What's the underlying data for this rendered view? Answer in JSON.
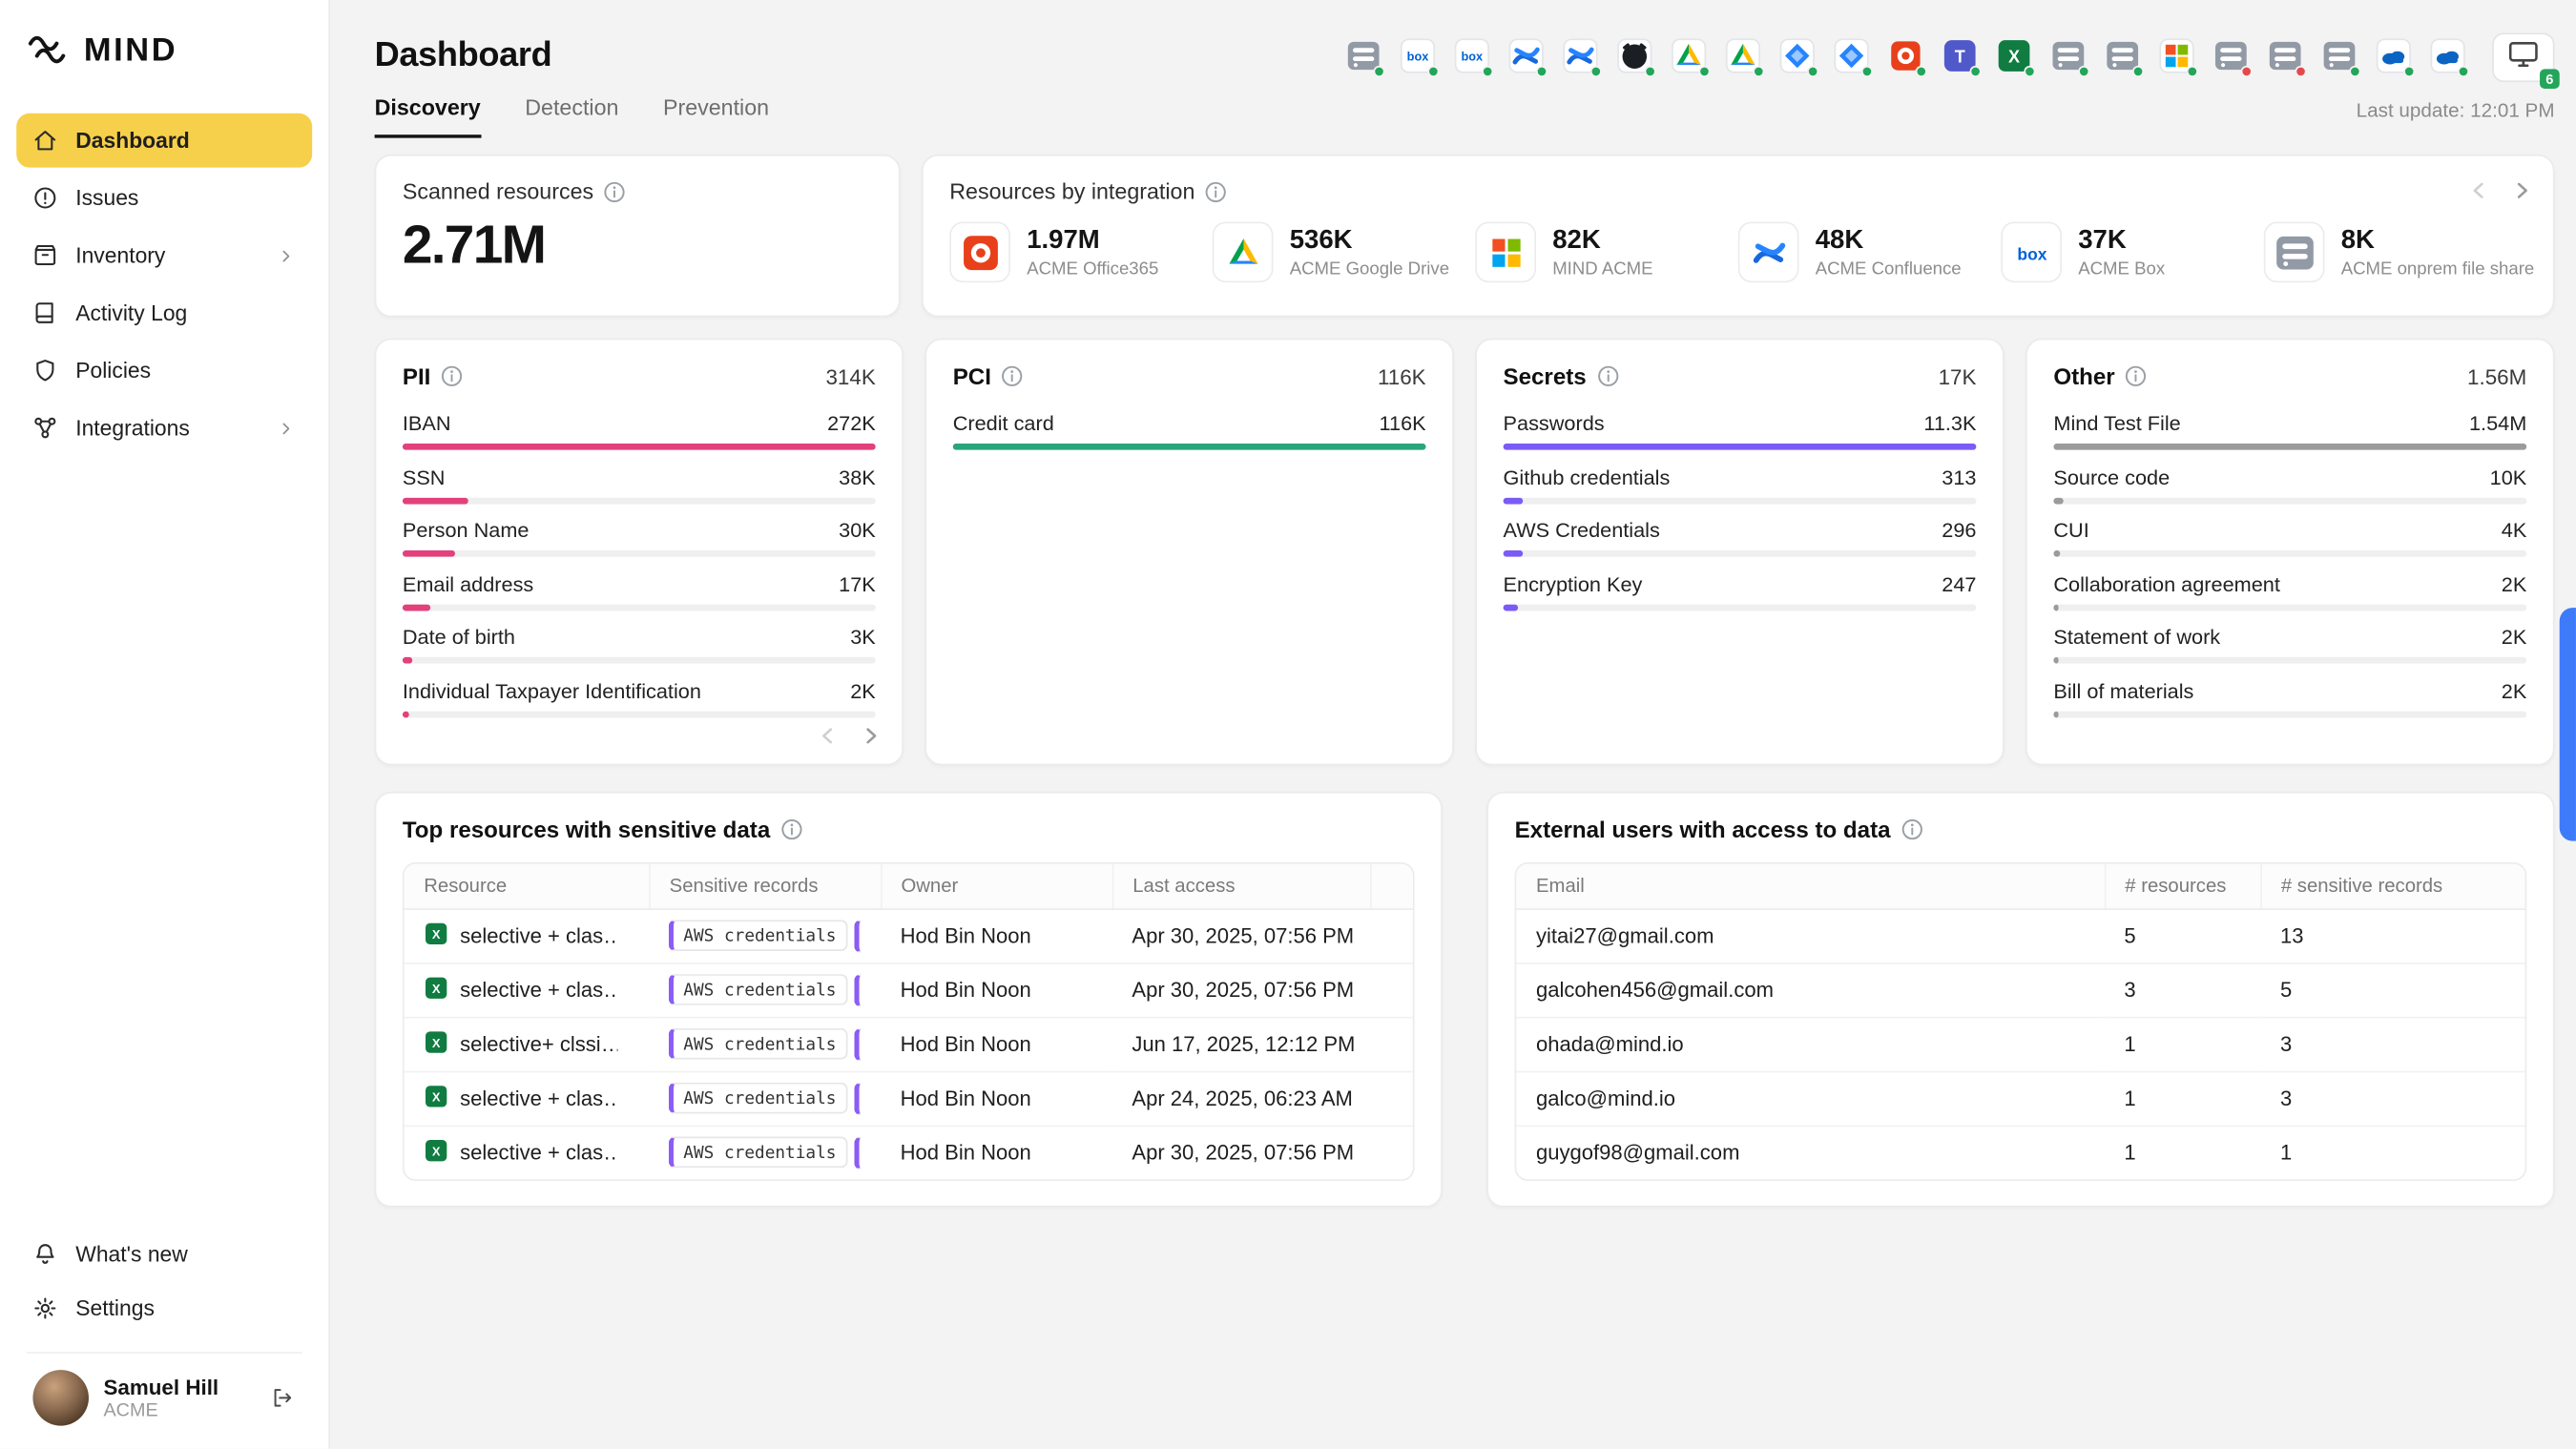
{
  "palette": {
    "accent_yellow": "#F7D04B",
    "pii_bar": "#E2417C",
    "pci_bar": "#2AA57A",
    "secrets_bar": "#7B5BF5",
    "other_bar": "#9B9B9B",
    "status_green": "#23A55A",
    "status_red": "#E5484D",
    "feedback_tab_blue": "#3D7BFA"
  },
  "sidebar": {
    "logo": "MIND",
    "items": [
      {
        "label": "Dashboard",
        "active": true
      },
      {
        "label": "Issues"
      },
      {
        "label": "Inventory",
        "expandable": true
      },
      {
        "label": "Activity Log"
      },
      {
        "label": "Policies"
      },
      {
        "label": "Integrations",
        "expandable": true
      }
    ],
    "whats_new": "What's new",
    "settings": "Settings",
    "user": {
      "name": "Samuel Hill",
      "org": "ACME"
    }
  },
  "header": {
    "title": "Dashboard",
    "tabs": [
      {
        "label": "Discovery",
        "active": true
      },
      {
        "label": "Detection"
      },
      {
        "label": "Prevention"
      }
    ],
    "last_update": "Last update: 12:01 PM",
    "monitor_badge": "6",
    "integrations": [
      {
        "name": "onprem-file-share",
        "status": "green"
      },
      {
        "name": "box",
        "status": "green"
      },
      {
        "name": "box",
        "status": "green"
      },
      {
        "name": "confluence",
        "status": "green"
      },
      {
        "name": "confluence",
        "status": "green"
      },
      {
        "name": "github",
        "status": "green"
      },
      {
        "name": "google-drive",
        "status": "green"
      },
      {
        "name": "google-drive",
        "status": "green"
      },
      {
        "name": "jira",
        "status": "green"
      },
      {
        "name": "jira",
        "status": "green"
      },
      {
        "name": "office365",
        "status": "green"
      },
      {
        "name": "teams",
        "status": "green"
      },
      {
        "name": "excel",
        "status": "green"
      },
      {
        "name": "onprem-file-share",
        "status": "green"
      },
      {
        "name": "onprem-file-share",
        "status": "green"
      },
      {
        "name": "microsoft-365",
        "status": "green"
      },
      {
        "name": "onprem-file-share",
        "status": "red"
      },
      {
        "name": "onprem-file-share",
        "status": "red"
      },
      {
        "name": "onprem-file-share",
        "status": "green"
      },
      {
        "name": "onedrive",
        "status": "green"
      },
      {
        "name": "onedrive",
        "status": "green"
      }
    ]
  },
  "scanned": {
    "title": "Scanned resources",
    "value": "2.71M"
  },
  "resources_by_integration": {
    "title": "Resources by integration",
    "items": [
      {
        "icon": "office365",
        "value": "1.97M",
        "label": "ACME Office365"
      },
      {
        "icon": "google-drive",
        "value": "536K",
        "label": "ACME Google Drive"
      },
      {
        "icon": "microsoft-365",
        "value": "82K",
        "label": "MIND ACME"
      },
      {
        "icon": "confluence",
        "value": "48K",
        "label": "ACME Confluence"
      },
      {
        "icon": "box",
        "value": "37K",
        "label": "ACME Box"
      },
      {
        "icon": "onprem-file-share",
        "value": "8K",
        "label": "ACME onprem file share"
      }
    ]
  },
  "pii": {
    "title": "PII",
    "total": "314K",
    "rows": [
      {
        "label": "IBAN",
        "value": "272K",
        "pct": 100
      },
      {
        "label": "SSN",
        "value": "38K",
        "pct": 14
      },
      {
        "label": "Person Name",
        "value": "30K",
        "pct": 11
      },
      {
        "label": "Email address",
        "value": "17K",
        "pct": 6
      },
      {
        "label": "Date of birth",
        "value": "3K",
        "pct": 2
      },
      {
        "label": "Individual Taxpayer Identification",
        "value": "2K",
        "pct": 1.5
      }
    ]
  },
  "pci": {
    "title": "PCI",
    "total": "116K",
    "rows": [
      {
        "label": "Credit card",
        "value": "116K",
        "pct": 100
      }
    ]
  },
  "secrets": {
    "title": "Secrets",
    "total": "17K",
    "rows": [
      {
        "label": "Passwords",
        "value": "11.3K",
        "pct": 100
      },
      {
        "label": "Github credentials",
        "value": "313",
        "pct": 4
      },
      {
        "label": "AWS Credentials",
        "value": "296",
        "pct": 4
      },
      {
        "label": "Encryption Key",
        "value": "247",
        "pct": 3
      }
    ]
  },
  "other": {
    "title": "Other",
    "total": "1.56M",
    "rows": [
      {
        "label": "Mind Test File",
        "value": "1.54M",
        "pct": 100
      },
      {
        "label": "Source code",
        "value": "10K",
        "pct": 2
      },
      {
        "label": "CUI",
        "value": "4K",
        "pct": 1.5
      },
      {
        "label": "Collaboration agreement",
        "value": "2K",
        "pct": 1
      },
      {
        "label": "Statement of work",
        "value": "2K",
        "pct": 1
      },
      {
        "label": "Bill of materials",
        "value": "2K",
        "pct": 1
      }
    ]
  },
  "top_resources": {
    "title": "Top resources with sensitive data",
    "columns": [
      "Resource",
      "Sensitive records",
      "Owner",
      "Last access"
    ],
    "rows": [
      {
        "resource": "selective + clas…",
        "chip": "AWS credentials",
        "owner": "Hod Bin Noon",
        "last_access": "Apr 30, 2025, 07:56 PM"
      },
      {
        "resource": "selective + clas…",
        "chip": "AWS credentials",
        "owner": "Hod Bin Noon",
        "last_access": "Apr 30, 2025, 07:56 PM"
      },
      {
        "resource": "selective+ clssi…",
        "chip": "AWS credentials",
        "owner": "Hod Bin Noon",
        "last_access": "Jun 17, 2025, 12:12 PM"
      },
      {
        "resource": "selective + clas…",
        "chip": "AWS credentials",
        "owner": "Hod Bin Noon",
        "last_access": "Apr 24, 2025, 06:23 AM"
      },
      {
        "resource": "selective + clas…",
        "chip": "AWS credentials",
        "owner": "Hod Bin Noon",
        "last_access": "Apr 30, 2025, 07:56 PM"
      }
    ]
  },
  "external_users": {
    "title": "External users with access to data",
    "columns": [
      "Email",
      "# resources",
      "# sensitive records"
    ],
    "rows": [
      {
        "email": "yitai27@gmail.com",
        "resources": "5",
        "sensitive": "13"
      },
      {
        "email": "galcohen456@gmail.com",
        "resources": "3",
        "sensitive": "5"
      },
      {
        "email": "ohada@mind.io",
        "resources": "1",
        "sensitive": "3"
      },
      {
        "email": "galco@mind.io",
        "resources": "1",
        "sensitive": "3"
      },
      {
        "email": "guygof98@gmail.com",
        "resources": "1",
        "sensitive": "1"
      }
    ]
  }
}
